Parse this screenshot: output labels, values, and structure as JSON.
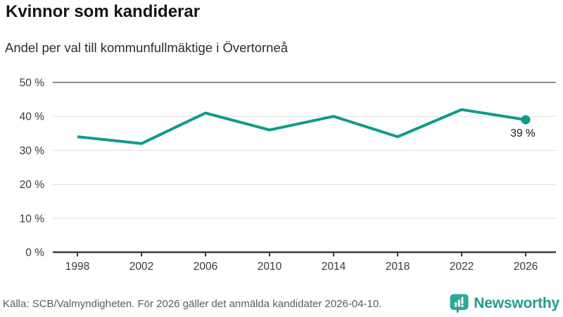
{
  "chart_data": {
    "type": "line",
    "title": "Kvinnor som kandiderar",
    "subtitle": "Andel per val till kommunfullmäktige i Övertorneå",
    "categories": [
      "1998",
      "2002",
      "2006",
      "2010",
      "2014",
      "2018",
      "2022",
      "2026"
    ],
    "values": [
      34,
      32,
      41,
      36,
      40,
      34,
      42,
      39
    ],
    "y_ticks": [
      "0 %",
      "10 %",
      "20 %",
      "30 %",
      "40 %",
      "50 %"
    ],
    "ylim": [
      0,
      50
    ],
    "end_label": "39 %",
    "grid": true,
    "legend": "none",
    "colors": {
      "line": "#119a8c",
      "grid": "#e2e2e2",
      "top_grid": "#8c8c8c",
      "axis": "#3a3a3a",
      "tick_text": "#3a3a3a",
      "end_label_text": "#1a1a1a"
    }
  },
  "footer": {
    "source": "Källa: SCB/Valmyndigheten. För 2026 gäller det anmälda kandidater 2026-04-10.",
    "brand": "Newsworthy",
    "brand_color": "#1f9d8e",
    "logo_color": "#2ea89a"
  }
}
